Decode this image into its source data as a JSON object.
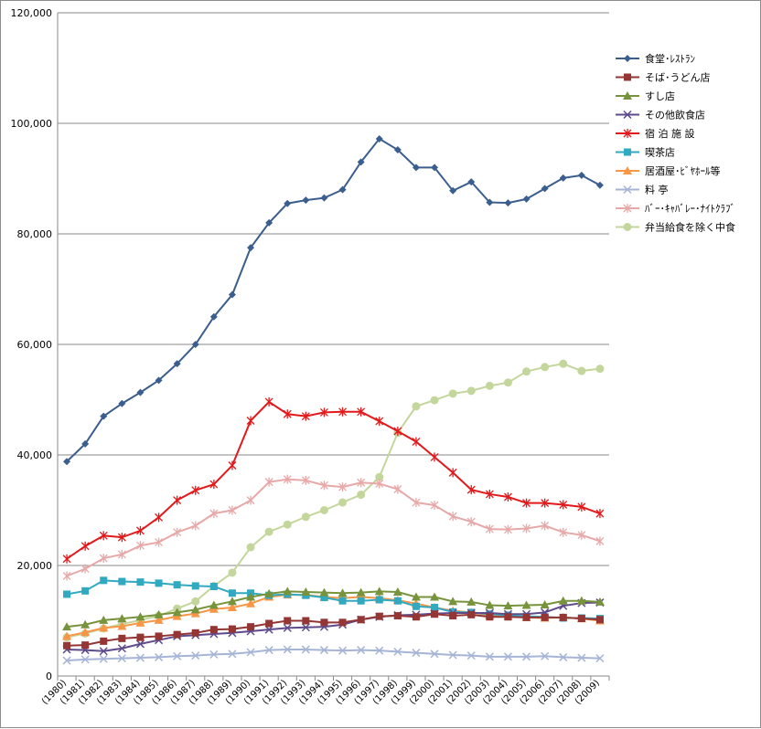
{
  "chart_data": {
    "type": "line",
    "title": "",
    "xlabel": "",
    "ylabel": "",
    "ylim": [
      0,
      120000
    ],
    "yticks": [
      0,
      20000,
      40000,
      60000,
      80000,
      100000,
      120000
    ],
    "ytick_labels": [
      "0",
      "20,000",
      "40,000",
      "60,000",
      "80,000",
      "100,000",
      "120,000"
    ],
    "grid": true,
    "legend_position": "right",
    "categories": [
      "(1980)",
      "(1981)",
      "(1982)",
      "(1983)",
      "(1984)",
      "(1985)",
      "(1986)",
      "(1987)",
      "(1988)",
      "(1989)",
      "(1990)",
      "(1991)",
      "(1992)",
      "(1993)",
      "(1994)",
      "(1995)",
      "(1996)",
      "(1997)",
      "(1998)",
      "(1999)",
      "(2000)",
      "(2001)",
      "(2002)",
      "(2003)",
      "(2004)",
      "(2005)",
      "(2006)",
      "(2007)",
      "(2008)",
      "(2009)"
    ],
    "series": [
      {
        "name": "食堂･ﾚｽﾄﾗﾝ",
        "color": "#3b5e8e",
        "marker": "diamond",
        "values": [
          38800,
          42000,
          47000,
          49300,
          51300,
          53500,
          56500,
          60000,
          65000,
          69000,
          77500,
          82000,
          85500,
          86100,
          86500,
          88000,
          93000,
          97200,
          95200,
          92000,
          92000,
          87800,
          89400,
          85700,
          85600,
          86300,
          88200,
          90100,
          90600,
          88800
        ]
      },
      {
        "name": "そば･うどん店",
        "color": "#943634",
        "marker": "square",
        "values": [
          5500,
          5600,
          6300,
          6800,
          7000,
          7200,
          7500,
          7800,
          8400,
          8500,
          8900,
          9500,
          10000,
          10000,
          9700,
          9700,
          10200,
          10800,
          10900,
          10700,
          11200,
          10900,
          11100,
          10700,
          10700,
          10600,
          10600,
          10600,
          10400,
          10200
        ]
      },
      {
        "name": "すし店",
        "color": "#77933c",
        "marker": "triangle",
        "values": [
          8900,
          9300,
          10100,
          10400,
          10700,
          11100,
          11500,
          12000,
          12800,
          13500,
          14300,
          14900,
          15300,
          15200,
          15100,
          15000,
          15100,
          15300,
          15200,
          14300,
          14300,
          13500,
          13400,
          12800,
          12700,
          12800,
          12900,
          13600,
          13600,
          13400
        ]
      },
      {
        "name": "その他飲食店",
        "color": "#5f4b8b",
        "marker": "x",
        "values": [
          4800,
          4700,
          4500,
          5000,
          5800,
          6500,
          7200,
          7400,
          7600,
          7800,
          8100,
          8400,
          8700,
          8800,
          8900,
          9300,
          10200,
          10700,
          11000,
          11100,
          11300,
          11400,
          11400,
          11400,
          11200,
          11200,
          11500,
          12700,
          13200,
          13300
        ]
      },
      {
        "name": "宿  泊  施  設",
        "color": "#e31a1c",
        "marker": "star",
        "values": [
          21200,
          23500,
          25400,
          25100,
          26300,
          28700,
          31800,
          33600,
          34700,
          38100,
          46200,
          49600,
          47400,
          47000,
          47700,
          47800,
          47800,
          46100,
          44300,
          42400,
          39600,
          36800,
          33700,
          32900,
          32400,
          31300,
          31300,
          31000,
          30600,
          29400
        ]
      },
      {
        "name": "喫茶店",
        "color": "#31a9c1",
        "marker": "square",
        "values": [
          14800,
          15400,
          17300,
          17100,
          17000,
          16800,
          16500,
          16300,
          16200,
          15000,
          15000,
          14600,
          14800,
          14600,
          14200,
          13600,
          13600,
          13800,
          13600,
          12600,
          12400,
          11600,
          11500,
          11200,
          11000,
          10800,
          10700,
          10500,
          10500,
          10400
        ]
      },
      {
        "name": "居酒屋･ﾋﾞﾔﾎｰﾙ等",
        "color": "#f79646",
        "marker": "triangle",
        "values": [
          7200,
          7900,
          8700,
          9000,
          9600,
          10100,
          10800,
          11300,
          12100,
          12400,
          13100,
          14300,
          14700,
          14700,
          14300,
          14100,
          14300,
          14100,
          13700,
          13100,
          12400,
          11800,
          11500,
          11000,
          10800,
          10600,
          10500,
          10600,
          10400,
          10000
        ]
      },
      {
        "name": "料  亭",
        "color": "#a6b4d6",
        "marker": "x",
        "values": [
          2800,
          3000,
          3100,
          3200,
          3300,
          3400,
          3600,
          3700,
          3900,
          4000,
          4300,
          4700,
          4800,
          4800,
          4700,
          4600,
          4700,
          4600,
          4400,
          4200,
          4000,
          3800,
          3700,
          3500,
          3500,
          3500,
          3600,
          3400,
          3300,
          3200
        ]
      },
      {
        "name": "ﾊﾞｰ･ｷｬﾊﾞﾚｰ･ﾅｲﾄｸﾗﾌﾞ",
        "color": "#e6a9a8",
        "marker": "star",
        "values": [
          18100,
          19400,
          21300,
          22000,
          23600,
          24200,
          26000,
          27200,
          29400,
          30000,
          31800,
          35100,
          35600,
          35400,
          34500,
          34200,
          35000,
          34800,
          33800,
          31400,
          30900,
          28900,
          27900,
          26600,
          26500,
          26700,
          27200,
          26000,
          25500,
          24400
        ]
      },
      {
        "name": "弁当給食を除く中食",
        "color": "#c3d69b",
        "marker": "circle",
        "values": [
          7000,
          7700,
          8600,
          9400,
          10100,
          10900,
          12200,
          13500,
          16300,
          18700,
          23300,
          26100,
          27400,
          28800,
          30000,
          31400,
          32800,
          36000,
          44000,
          48800,
          49900,
          51100,
          51600,
          52500,
          53100,
          55100,
          55900,
          56500,
          55200,
          55600
        ]
      }
    ]
  }
}
